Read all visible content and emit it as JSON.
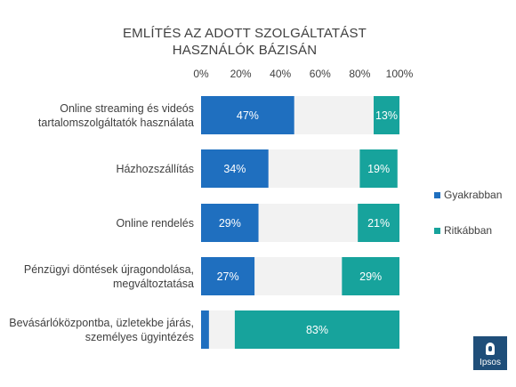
{
  "chart_data": {
    "type": "bar",
    "orientation": "horizontal",
    "stacked": true,
    "title_lines": [
      "EMLÍTÉS AZ ADOTT SZOLGÁLTATÁST",
      "HASZNÁLÓK BÁZISÁN"
    ],
    "xlim": [
      0,
      100
    ],
    "x_ticks": [
      "0%",
      "20%",
      "40%",
      "60%",
      "80%",
      "100%"
    ],
    "categories": [
      "Online streaming és videós tartalomszolgáltatók használata",
      "Házhozszállítás",
      "Online rendelés",
      "Pénzügyi döntések újragondolása, megváltoztatása",
      "Bevásárlóközpontba, üzletekbe járás, személyes ügyintézés"
    ],
    "series": [
      {
        "name": "Gyakrabban",
        "values": [
          47,
          34,
          29,
          27,
          4
        ],
        "labels": [
          "47%",
          "34%",
          "29%",
          "27%",
          ""
        ]
      },
      {
        "values": [
          40,
          46,
          50,
          44,
          13
        ]
      },
      {
        "name": "Ritkábban",
        "values": [
          13,
          19,
          21,
          29,
          83
        ],
        "labels": [
          "13%",
          "19%",
          "21%",
          "29%",
          "83%"
        ]
      }
    ],
    "legend_position": "right"
  },
  "colors": {
    "gyakrabban": "#1f6fbf",
    "middle": "#f2f2f2",
    "ritkabban": "#17a39c",
    "text": "#404040",
    "logo": "#1f4e79"
  },
  "logo_text": "Ipsos"
}
